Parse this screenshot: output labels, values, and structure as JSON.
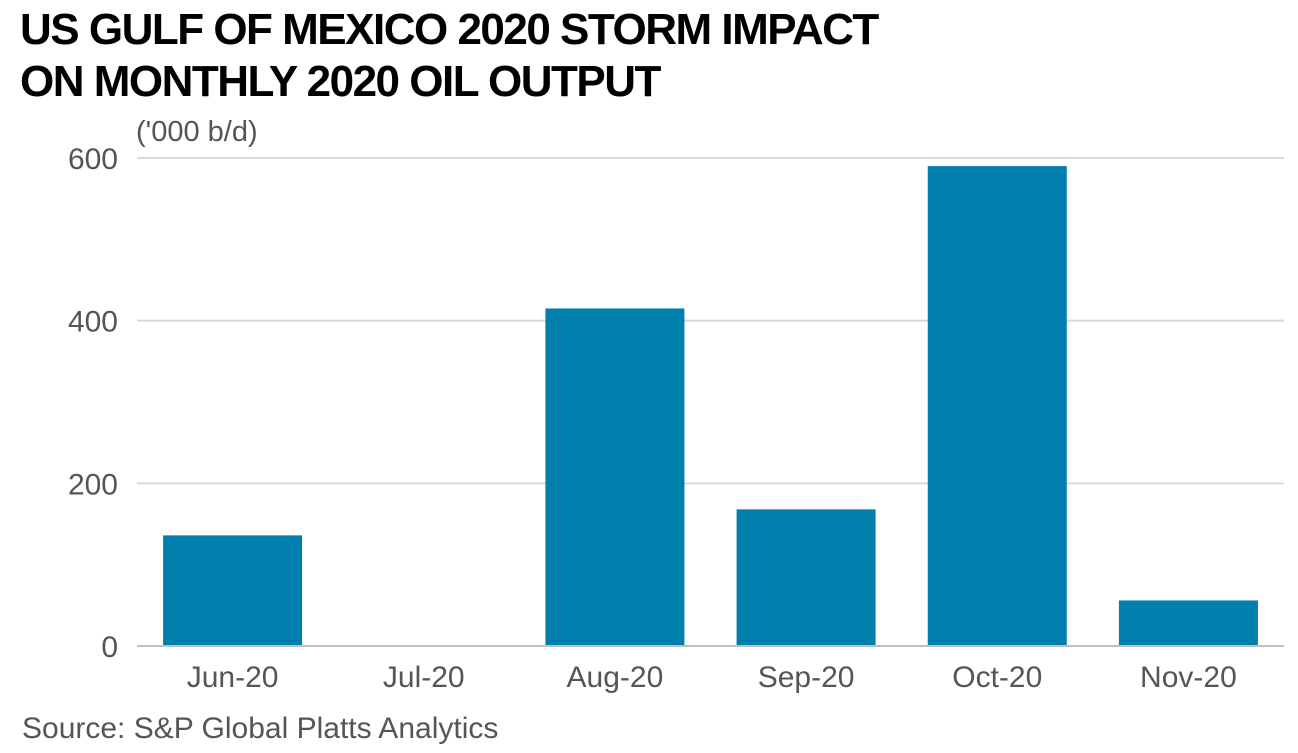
{
  "chart_data": {
    "type": "bar",
    "title_lines": [
      "US GULF OF MEXICO 2020 STORM IMPACT",
      "ON MONTHLY 2020 OIL OUTPUT"
    ],
    "unit_label": "('000 b/d)",
    "source": "Source: S&P Global Platts Analytics",
    "categories": [
      "Jun-20",
      "Jul-20",
      "Aug-20",
      "Sep-20",
      "Oct-20",
      "Nov-20"
    ],
    "values": [
      136,
      0,
      415,
      168,
      590,
      56
    ],
    "ylim": [
      0,
      600
    ],
    "yticks": [
      0,
      200,
      400,
      600
    ],
    "grid": true,
    "legend": "none",
    "bar_color": "#007FAD",
    "grid_color": "#d9d9d9",
    "axis_color": "#bfbfbf"
  }
}
